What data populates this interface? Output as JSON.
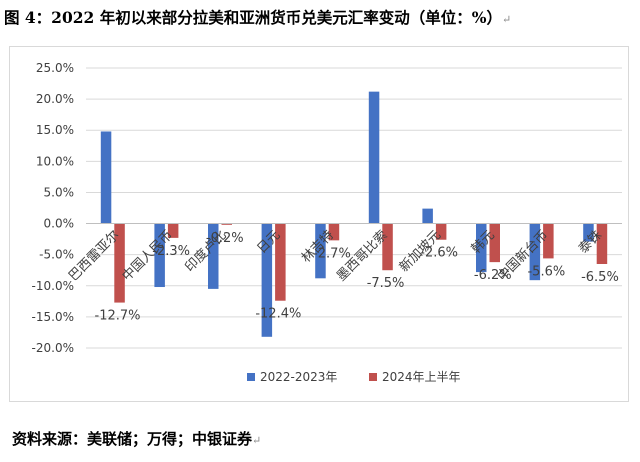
{
  "figure": {
    "title": "图 4：2022 年初以来部分拉美和亚洲货币兑美元汇率变动（单位：%）",
    "source": "资料来源：美联储；万得；中银证券"
  },
  "chart_data": {
    "type": "bar",
    "title": "",
    "xlabel": "",
    "ylabel": "",
    "ylim": [
      -20,
      25
    ],
    "yticks": [
      -20,
      -15,
      -10,
      -5,
      0,
      5,
      10,
      15,
      20,
      25
    ],
    "ytick_labels": [
      "-20.0%",
      "-15.0%",
      "-10.0%",
      "-5.0%",
      "0.0%",
      "5.0%",
      "10.0%",
      "15.0%",
      "20.0%",
      "25.0%"
    ],
    "grid": true,
    "legend_position": "bottom",
    "categories": [
      "巴西雷亚尔",
      "中国人民币",
      "印度卢比",
      "日元",
      "林吉特",
      "墨西哥比索",
      "新加坡元",
      "韩元",
      "中国新台币",
      "泰铢"
    ],
    "series": [
      {
        "name": "2022-2023年",
        "color": "#4472c4",
        "values": [
          14.8,
          -10.2,
          -10.5,
          -18.2,
          -8.8,
          21.2,
          2.4,
          -7.8,
          -9.1,
          -2.9
        ]
      },
      {
        "name": "2024年上半年",
        "color": "#c0504d",
        "values": [
          -12.7,
          -2.3,
          -0.2,
          -12.4,
          -2.7,
          -7.5,
          -2.6,
          -6.2,
          -5.6,
          -6.5
        ],
        "labels": [
          "-12.7%",
          "-2.3%",
          "-0.2%",
          "-12.4%",
          "-2.7%",
          "-7.5%",
          "-2.6%",
          "-6.2%",
          "-5.6%",
          "-6.5%"
        ]
      }
    ]
  }
}
